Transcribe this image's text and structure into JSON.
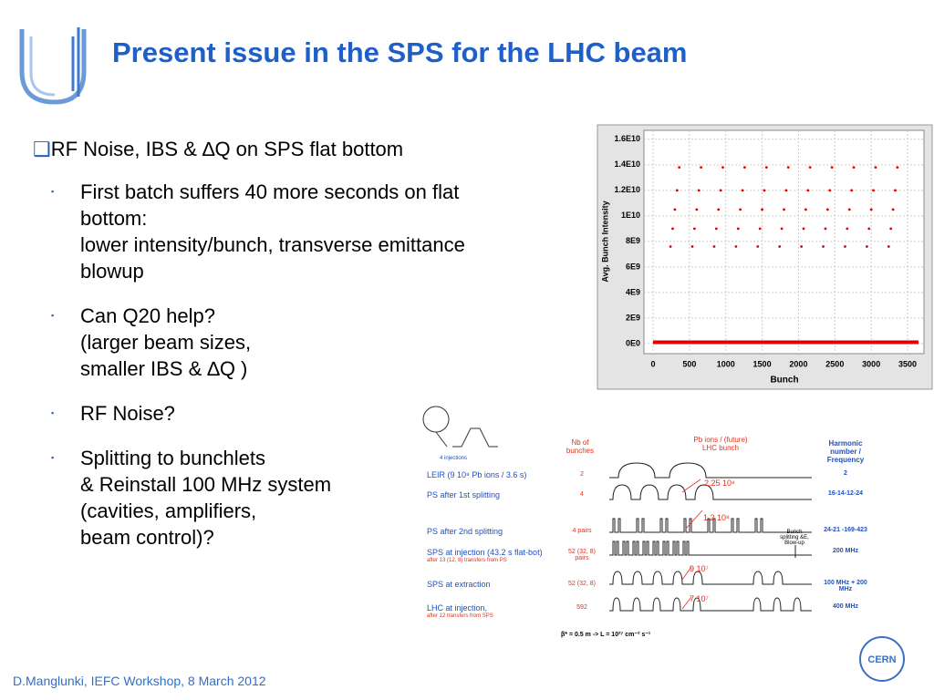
{
  "header": {
    "title": "Present issue in the SPS  for the LHC beam"
  },
  "bullets": {
    "main": "RF Noise, IBS & ∆Q on SPS flat bottom",
    "items": [
      [
        "First batch suffers 40 more seconds on flat",
        "bottom:",
        "lower intensity/bunch, transverse emittance",
        "blowup"
      ],
      [
        "Can Q20 help?",
        "(larger beam sizes,",
        "smaller  IBS & ∆Q )"
      ],
      [
        "RF Noise?"
      ],
      [
        "Splitting to bunchlets",
        "& Reinstall 100 MHz system",
        " (cavities, amplifiers,",
        "beam control)?"
      ]
    ]
  },
  "chart_data": {
    "type": "scatter",
    "xlabel": "Bunch",
    "ylabel": "Avg. Bunch Intensity",
    "xlim": [
      -125,
      3725
    ],
    "ylim": [
      -790000000,
      16700000000
    ],
    "xticks": [
      0,
      500,
      1000,
      1500,
      2000,
      2500,
      3000,
      3500
    ],
    "yticks": [
      {
        "value": 0,
        "label": "0E0"
      },
      {
        "value": 2000000000,
        "label": "2E9"
      },
      {
        "value": 4000000000,
        "label": "4E9"
      },
      {
        "value": 6000000000,
        "label": "6E9"
      },
      {
        "value": 8000000000,
        "label": "8E9"
      },
      {
        "value": 10000000000,
        "label": "1E10"
      },
      {
        "value": 12000000000,
        "label": "1.2E10"
      },
      {
        "value": 14000000000,
        "label": "1.4E10"
      },
      {
        "value": 16000000000,
        "label": "1.6E10"
      }
    ],
    "grid": true,
    "series": [
      {
        "color": "#e00000",
        "x": [
          240,
          270,
          300,
          330,
          360,
          540,
          570,
          600,
          630,
          660,
          840,
          870,
          900,
          930,
          960,
          1140,
          1170,
          1200,
          1230,
          1260,
          1440,
          1470,
          1500,
          1530,
          1560,
          1740,
          1770,
          1800,
          1830,
          1860,
          2040,
          2070,
          2100,
          2130,
          2160,
          2340,
          2370,
          2400,
          2430,
          2460,
          2640,
          2670,
          2700,
          2730,
          2760,
          2940,
          2970,
          3000,
          3030,
          3060,
          3240,
          3270,
          3300,
          3330,
          3360
        ],
        "y": [
          7600000000,
          9000000000,
          10500000000,
          12000000000,
          13800000000,
          7600000000,
          9000000000,
          10500000000,
          12000000000,
          13800000000,
          7600000000,
          9000000000,
          10500000000,
          12000000000,
          13800000000,
          7600000000,
          9000000000,
          10500000000,
          12000000000,
          13800000000,
          7600000000,
          9000000000,
          10500000000,
          12000000000,
          13800000000,
          7600000000,
          9000000000,
          10500000000,
          12000000000,
          13800000000,
          7600000000,
          9000000000,
          10500000000,
          12000000000,
          13800000000,
          7600000000,
          9000000000,
          10500000000,
          12000000000,
          13800000000,
          7600000000,
          9000000000,
          10500000000,
          12000000000,
          13800000000,
          7600000000,
          9000000000,
          10500000000,
          12000000000,
          13800000000,
          7600000000,
          9000000000,
          10500000000,
          12000000000,
          13800000000
        ]
      },
      {
        "color": "#e00000",
        "x": [
          0,
          3650
        ],
        "y": [
          100000000,
          100000000
        ]
      }
    ]
  },
  "diagram": {
    "injections": "4 injections",
    "headers": [
      "Nb of bunches",
      "Pb ions / (future) LHC bunch",
      "Harmonic number / Frequency"
    ],
    "rows": [
      {
        "label": "LEIR      (9 10⁸ Pb ions / 3.6 s)",
        "bunches": "2",
        "harmonic": "2"
      },
      {
        "label": "PS after 1st splitting",
        "bunches": "4",
        "harmonic": "16-14-12-24"
      },
      {
        "label": "PS after 2nd splitting",
        "bunches": "4 pairs",
        "harmonic": "24-21 -169-423"
      },
      {
        "label": "SPS at  injection (43.2 s flat-bot)",
        "sublabel": "after 13 (12, 8) transfers from PS",
        "bunches": "52 (32, 8) pairs",
        "harmonic": "200 MHz"
      },
      {
        "label": "SPS at  extraction",
        "bunches": "52 (32, 8)",
        "harmonic": "100 MHz + 200 MHz"
      },
      {
        "label": "LHC at injection,",
        "sublabel": "after 12 transfers from SPS",
        "bunches": "592",
        "harmonic": "400 MHz"
      }
    ],
    "intensities": [
      "2.25  10⁸",
      "1.2  10⁸",
      "9 10⁷",
      "7 10⁷"
    ],
    "splitting": "Bunch splitting &E, Blow-up",
    "luminosity": "β* = 0.5 m  -> L = 10²⁷ cm⁻² s⁻¹"
  },
  "footer": {
    "text": "D.Manglunki, IEFC Workshop, 8 March 2012",
    "logo": "CERN"
  }
}
